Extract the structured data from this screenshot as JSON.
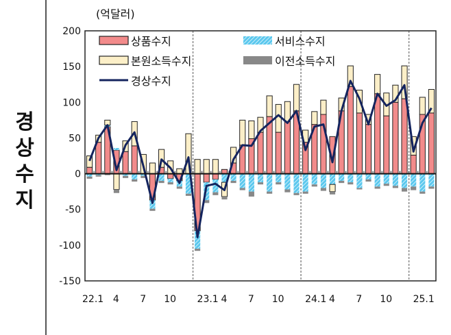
{
  "side_title": "경상수지",
  "chart_data": {
    "type": "bar",
    "stacked": true,
    "unit_label": "(억달러)",
    "ylim": [
      -150,
      200
    ],
    "yticks": [
      200,
      150,
      100,
      50,
      0,
      -50,
      -100,
      -150
    ],
    "x": [
      "22.1",
      "22.2",
      "22.3",
      "22.4",
      "22.5",
      "22.6",
      "22.7",
      "22.8",
      "22.9",
      "22.10",
      "22.11",
      "22.12",
      "23.1",
      "23.2",
      "23.3",
      "23.4",
      "23.5",
      "23.6",
      "23.7",
      "23.8",
      "23.9",
      "23.10",
      "23.11",
      "23.12",
      "24.1",
      "24.2",
      "24.3",
      "24.4",
      "24.5",
      "24.6",
      "24.7",
      "24.8",
      "24.9",
      "24.10",
      "24.11",
      "24.12",
      "25.1",
      "25.2",
      "25.3"
    ],
    "xtick_labels": [
      "22.1",
      "4",
      "7",
      "10",
      "23.1",
      "4",
      "7",
      "10",
      "24.1",
      "4",
      "7",
      "10",
      "25.1"
    ],
    "year_dividers": [
      "23.1",
      "24.1",
      "25.1"
    ],
    "legend_placement": "top-left",
    "series": [
      {
        "name": "상품수지",
        "kind": "bar",
        "color": "#f28b8b",
        "values": [
          9,
          44,
          66,
          33,
          31,
          39,
          0,
          -37,
          9,
          -7,
          -10,
          0,
          -80,
          -12,
          -8,
          6,
          15,
          40,
          49,
          58,
          80,
          58,
          73,
          88,
          44,
          69,
          83,
          52,
          88,
          122,
          85,
          69,
          112,
          81,
          100,
          105,
          26,
          83,
          85
        ]
      },
      {
        "name": "서비스수지",
        "kind": "bar",
        "color": "#5bc8ee",
        "pattern": "hatched",
        "values": [
          -4,
          -2,
          2,
          3,
          -3,
          -8,
          -3,
          -12,
          -10,
          -5,
          -8,
          -28,
          -25,
          -25,
          -18,
          -12,
          -10,
          -20,
          -25,
          -12,
          -25,
          -12,
          -22,
          -27,
          -25,
          -15,
          -20,
          -15,
          -10,
          -12,
          -20,
          -8,
          -18,
          -14,
          -17,
          -20,
          -18,
          -25,
          -18
        ]
      },
      {
        "name": "본원소득수지",
        "kind": "bar",
        "color": "#fcefc8",
        "values": [
          16,
          10,
          7,
          -22,
          15,
          34,
          27,
          15,
          25,
          18,
          7,
          56,
          20,
          20,
          20,
          -20,
          22,
          35,
          25,
          21,
          29,
          39,
          28,
          37,
          17,
          18,
          20,
          -10,
          18,
          29,
          32,
          14,
          27,
          32,
          24,
          46,
          26,
          24,
          33
        ]
      },
      {
        "name": "이전소득수지",
        "kind": "bar",
        "color": "#888888",
        "values": [
          -3,
          -2,
          -2,
          -5,
          -3,
          -3,
          -3,
          -3,
          -3,
          -3,
          -3,
          -3,
          -3,
          -4,
          -4,
          -4,
          -3,
          -3,
          -7,
          -3,
          -3,
          -3,
          -4,
          -3,
          -3,
          -3,
          -4,
          -4,
          -3,
          -3,
          -2,
          -3,
          -3,
          -3,
          -3,
          -5,
          -5,
          -3,
          -3
        ]
      },
      {
        "name": "경상수지",
        "kind": "line",
        "color": "#14245e",
        "values": [
          18,
          50,
          68,
          5,
          40,
          58,
          10,
          -41,
          20,
          8,
          -13,
          23,
          -89,
          -17,
          -14,
          -23,
          20,
          40,
          39,
          60,
          71,
          82,
          71,
          88,
          33,
          66,
          69,
          16,
          88,
          130,
          105,
          69,
          112,
          95,
          103,
          124,
          31,
          71,
          92
        ]
      }
    ]
  }
}
